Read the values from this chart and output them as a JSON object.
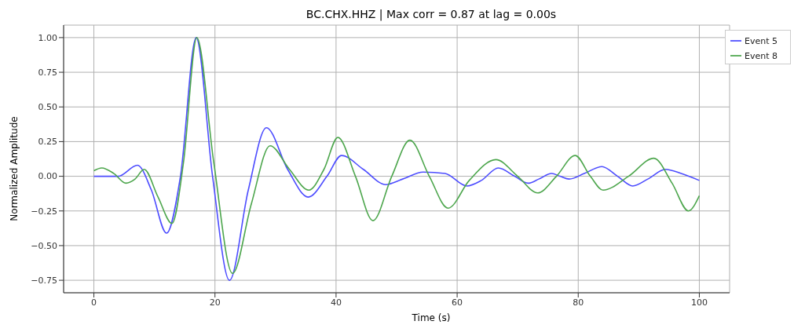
{
  "chart_data": {
    "type": "line",
    "title": "BC.CHX.HHZ | Max corr = 0.87 at lag = 0.00s",
    "xlabel": "Time (s)",
    "ylabel": "Normalized Amplitude",
    "xlim": [
      -5,
      105
    ],
    "xticks": [
      0,
      20,
      40,
      60,
      80,
      100
    ],
    "ylim": [
      -0.84,
      1.09
    ],
    "yticks": [
      {
        "value": -0.75,
        "label": "−0.75"
      },
      {
        "value": -0.5,
        "label": "−0.50"
      },
      {
        "value": -0.25,
        "label": "−0.25"
      },
      {
        "value": 0,
        "label": "0.00"
      },
      {
        "value": 0.25,
        "label": "0.25"
      },
      {
        "value": 0.5,
        "label": "0.50"
      },
      {
        "value": 0.75,
        "label": "0.75"
      },
      {
        "value": 1,
        "label": "1.00"
      }
    ],
    "grid": true,
    "legend": "top right",
    "marker": "none",
    "line_style": "solid",
    "series": [
      {
        "name": "Event 5",
        "color": "#4d4dff",
        "x": [
          0,
          4,
          7.2,
          9.5,
          12.0,
          14.3,
          16.9,
          19.6,
          22.4,
          25.5,
          28.5,
          32,
          35.4,
          38.5,
          40.9,
          44.5,
          48.2,
          51,
          54.4,
          58,
          61.6,
          64,
          66.8,
          69.5,
          71.7,
          73.5,
          75.6,
          77,
          78.5,
          81,
          83.9,
          86.5,
          89,
          91.5,
          94.4,
          97,
          100
        ],
        "values": [
          0,
          0,
          0.08,
          -0.1,
          -0.41,
          0,
          1.0,
          0,
          -0.75,
          -0.1,
          0.35,
          0.05,
          -0.15,
          0,
          0.15,
          0.05,
          -0.06,
          -0.02,
          0.03,
          0.02,
          -0.07,
          -0.03,
          0.06,
          0,
          -0.05,
          -0.02,
          0.02,
          0,
          -0.02,
          0.02,
          0.07,
          0,
          -0.07,
          -0.02,
          0.05,
          0.02,
          -0.03
        ]
      },
      {
        "name": "Event 8",
        "color": "#4da64d",
        "x": [
          0,
          1.3,
          3.3,
          5.3,
          6.8,
          8.3,
          10.6,
          12.9,
          14.8,
          17,
          19.8,
          22.9,
          26,
          29.1,
          32.3,
          35.5,
          38,
          40.3,
          43.2,
          46.1,
          49.2,
          52.2,
          55.4,
          58.5,
          62,
          66.4,
          70,
          73.3,
          76.4,
          79.5,
          82,
          84.1,
          88.3,
          92.5,
          95.5,
          98.2,
          100
        ],
        "values": [
          0.04,
          0.06,
          0.02,
          -0.05,
          -0.02,
          0.05,
          -0.15,
          -0.34,
          0.1,
          1.0,
          0.1,
          -0.7,
          -0.2,
          0.22,
          0.05,
          -0.1,
          0.05,
          0.28,
          0,
          -0.32,
          0,
          0.26,
          0,
          -0.23,
          -0.03,
          0.12,
          0,
          -0.12,
          0,
          0.15,
          0,
          -0.1,
          0,
          0.13,
          -0.05,
          -0.25,
          -0.14
        ]
      }
    ]
  }
}
